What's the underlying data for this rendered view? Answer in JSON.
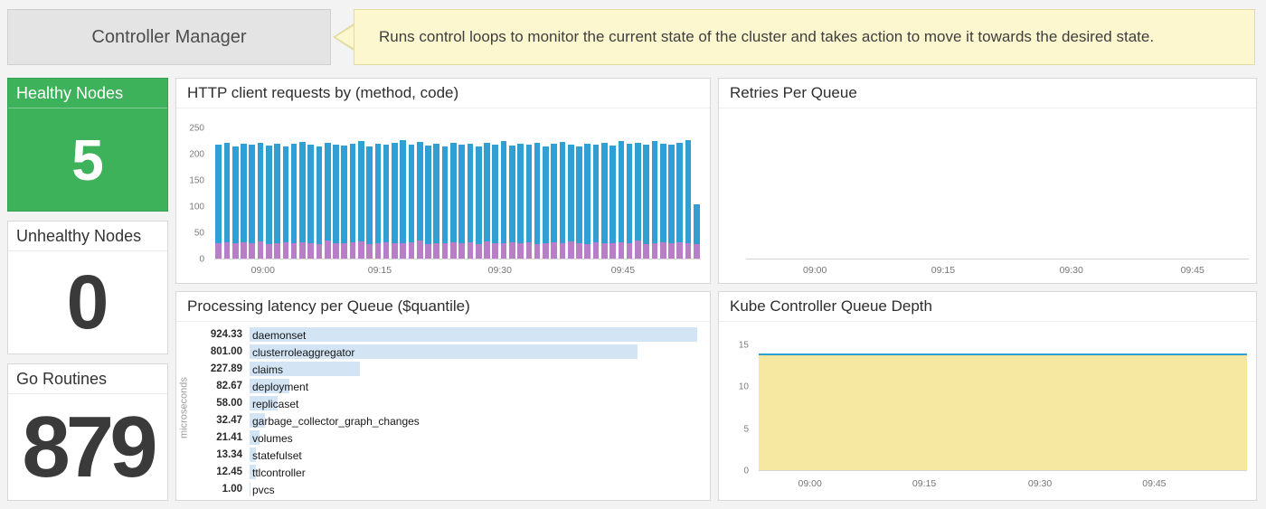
{
  "header": {
    "title": "Controller Manager",
    "description": "Runs control loops to monitor the current state of the cluster and takes action to move it towards the desired state."
  },
  "stats": {
    "healthy": {
      "label": "Healthy Nodes",
      "value": "5"
    },
    "unhealthy": {
      "label": "Unhealthy Nodes",
      "value": "0"
    },
    "goroutines": {
      "label": "Go Routines",
      "value": "879"
    }
  },
  "colors": {
    "accent_green": "#3EB15B",
    "bar_blue": "#2F9FD4",
    "bar_purple": "#B87FC6",
    "latency_bar_blue": "#D3E5F4",
    "area_yellow_fill": "#F6E8A0",
    "area_line_blue": "#2F9FD4",
    "banner_yellow": "#FCF7CF"
  },
  "chart_data": [
    {
      "id": "http_client_requests",
      "type": "bar",
      "stacked": true,
      "title": "HTTP client requests by (method, code)",
      "ylim": [
        0,
        250
      ],
      "yticks": [
        0,
        50,
        100,
        150,
        200,
        250
      ],
      "xticks": [
        "09:00",
        "09:15",
        "09:30",
        "09:45"
      ],
      "grid": false,
      "legend": "none",
      "bars": {
        "totals": [
          218,
          222,
          215,
          220,
          219,
          223,
          217,
          221,
          216,
          220,
          224,
          218,
          215,
          222,
          219,
          217,
          221,
          225,
          216,
          220,
          218,
          223,
          228,
          219,
          224,
          217,
          221,
          215,
          222,
          218,
          220,
          216,
          223,
          219,
          225,
          217,
          221,
          218,
          222,
          216,
          220,
          224,
          218,
          215,
          221,
          219,
          223,
          217,
          225,
          220,
          222,
          218,
          226,
          221,
          219,
          223,
          227,
          105
        ],
        "purple": [
          30,
          32,
          29,
          31,
          30,
          33,
          28,
          30,
          31,
          29,
          32,
          30,
          28,
          35,
          30,
          29,
          31,
          33,
          28,
          30,
          32,
          29,
          30,
          31,
          35,
          28,
          30,
          29,
          32,
          30,
          31,
          28,
          33,
          30,
          29,
          31,
          30,
          32,
          28,
          30,
          31,
          29,
          33,
          30,
          28,
          32,
          30,
          29,
          31,
          30,
          35,
          28,
          30,
          32,
          29,
          31,
          30,
          28
        ]
      }
    },
    {
      "id": "retries_per_queue",
      "type": "line",
      "title": "Retries Per Queue",
      "xticks": [
        "09:00",
        "09:15",
        "09:30",
        "09:45"
      ],
      "series": [],
      "grid": false,
      "legend": "none"
    },
    {
      "id": "processing_latency",
      "type": "bar",
      "orientation": "horizontal",
      "title": "Processing latency per Queue ($quantile)",
      "ylabel": "microseconds",
      "categories": [
        "daemonset",
        "clusterroleaggregator",
        "claims",
        "deployment",
        "replicaset",
        "garbage_collector_graph_changes",
        "volumes",
        "statefulset",
        "ttlcontroller",
        "pvcs"
      ],
      "values": [
        924.33,
        801.0,
        227.89,
        82.67,
        58.0,
        32.47,
        21.41,
        13.34,
        12.45,
        1.0
      ],
      "value_labels": [
        "924.33",
        "801.00",
        "227.89",
        "82.67",
        "58.00",
        "32.47",
        "21.41",
        "13.34",
        "12.45",
        "1.00"
      ],
      "grid": false,
      "legend": "none"
    },
    {
      "id": "queue_depth",
      "type": "area",
      "title": "Kube Controller Queue Depth",
      "ylim": [
        0,
        15
      ],
      "yticks": [
        0,
        5,
        10,
        15
      ],
      "xticks": [
        "09:00",
        "09:15",
        "09:30",
        "09:45"
      ],
      "value": 14,
      "grid": false,
      "legend": "none"
    }
  ]
}
